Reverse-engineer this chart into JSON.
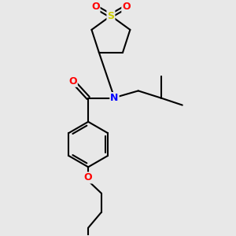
{
  "bg_color": "#e8e8e8",
  "atom_colors": {
    "S": "#cccc00",
    "O": "#ff0000",
    "N": "#0000ff",
    "C": "#000000"
  },
  "bond_color": "#000000",
  "bond_width": 1.5,
  "dbo": 0.07
}
